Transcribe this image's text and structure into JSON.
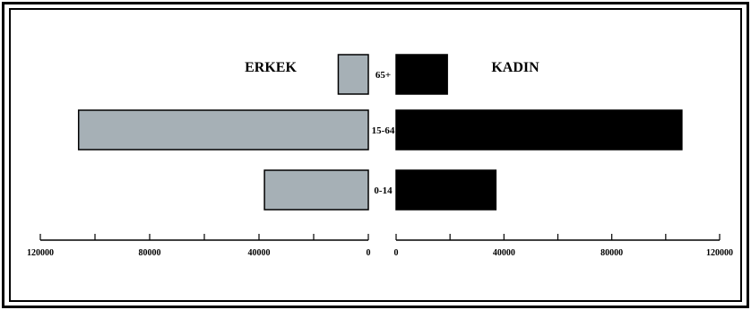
{
  "chart_data": {
    "type": "bar",
    "orientation": "horizontal",
    "layout": "population-pyramid",
    "categories": [
      "65+",
      "15-64",
      "0-14"
    ],
    "series": [
      {
        "name": "ERKEK",
        "side": "left",
        "color": "#a6b0b6",
        "values": [
          11000,
          106000,
          38000
        ]
      },
      {
        "name": "KADIN",
        "side": "right",
        "color": "#000000",
        "values": [
          19000,
          106000,
          37000
        ]
      }
    ],
    "xlim": [
      0,
      120000
    ],
    "left_ticks": [
      {
        "value": 120000,
        "label": "120000"
      },
      {
        "value": 80000,
        "label": "80000"
      },
      {
        "value": 40000,
        "label": "40000"
      },
      {
        "value": 0,
        "label": "0"
      }
    ],
    "right_ticks": [
      {
        "value": 0,
        "label": "0"
      },
      {
        "value": 40000,
        "label": "40000"
      },
      {
        "value": 80000,
        "label": "80000"
      },
      {
        "value": 120000,
        "label": "120000"
      }
    ],
    "grid": false,
    "title": "",
    "xlabel": "",
    "ylabel": ""
  }
}
